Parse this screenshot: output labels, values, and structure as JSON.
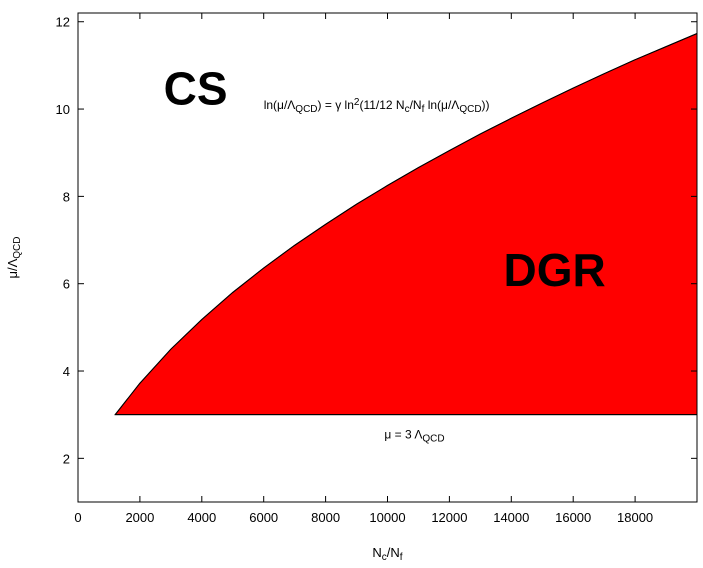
{
  "chart_data": {
    "type": "area",
    "xlabel": {
      "base": "N",
      "sub1": "c",
      "sep": "/N",
      "sub2": "f"
    },
    "ylabel": {
      "base": "μ/Λ",
      "sub": "QCD"
    },
    "xlim": [
      0,
      20000
    ],
    "ylim": [
      1,
      12.2
    ],
    "xticks": [
      0,
      2000,
      4000,
      6000,
      8000,
      10000,
      12000,
      14000,
      16000,
      18000
    ],
    "yticks": [
      2,
      4,
      6,
      8,
      10,
      12
    ],
    "grid": false,
    "fill_color": "#ff0000",
    "upper_boundary": {
      "x": [
        1200,
        2000,
        3000,
        4000,
        5000,
        6000,
        7000,
        8000,
        9000,
        10000,
        11000,
        12000,
        13000,
        14000,
        15000,
        16000,
        17000,
        18000,
        19000,
        20000
      ],
      "y": [
        3.0,
        3.72,
        4.5,
        5.18,
        5.8,
        6.36,
        6.88,
        7.36,
        7.82,
        8.25,
        8.66,
        9.05,
        9.43,
        9.79,
        10.14,
        10.48,
        10.81,
        11.13,
        11.43,
        11.73
      ]
    },
    "lower_boundary_y": 3,
    "regions": [
      {
        "label": "CS",
        "x": 3800,
        "y": 10.1
      },
      {
        "label": "DGR",
        "x": 15400,
        "y": 5.95
      }
    ],
    "annotations": [
      {
        "id": "upper-curve",
        "x": 6000,
        "y": 10.0,
        "parts": [
          {
            "t": "ln(μ/Λ"
          },
          {
            "t": "QCD",
            "s": "sub"
          },
          {
            "t": ") = γ ln"
          },
          {
            "t": "2",
            "s": "sup"
          },
          {
            "t": "(11/12 N"
          },
          {
            "t": "c",
            "s": "sub"
          },
          {
            "t": "/N"
          },
          {
            "t": "f",
            "s": "sub"
          },
          {
            "t": " ln(μ/Λ"
          },
          {
            "t": "QCD",
            "s": "sub"
          },
          {
            "t": "))"
          }
        ]
      },
      {
        "id": "lower-line",
        "x": 9900,
        "y": 2.45,
        "parts": [
          {
            "t": "μ = 3 Λ"
          },
          {
            "t": "QCD",
            "s": "sub"
          }
        ]
      }
    ]
  }
}
